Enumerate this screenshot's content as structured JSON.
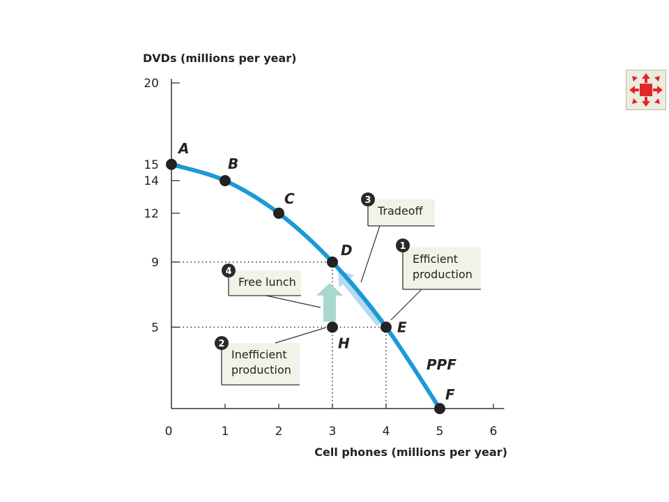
{
  "chart_data": {
    "type": "line",
    "title": "",
    "ylabel": "DVDs (millions per year)",
    "xlabel": "Cell phones (millions per year)",
    "xlim": [
      0,
      6.2
    ],
    "ylim": [
      0,
      20
    ],
    "x_ticks": [
      "0",
      "1",
      "2",
      "3",
      "4",
      "5",
      "6"
    ],
    "y_ticks": [
      "20",
      "15",
      "14",
      "12",
      "9",
      "5"
    ],
    "y_tick_values": [
      20,
      15,
      14,
      12,
      9,
      5
    ],
    "series": [
      {
        "name": "PPF",
        "points": [
          {
            "label": "A",
            "x": 0,
            "y": 15
          },
          {
            "label": "B",
            "x": 1,
            "y": 14
          },
          {
            "label": "C",
            "x": 2,
            "y": 12
          },
          {
            "label": "D",
            "x": 3,
            "y": 9
          },
          {
            "label": "E",
            "x": 4,
            "y": 5
          },
          {
            "label": "F",
            "x": 5,
            "y": 0
          }
        ]
      }
    ],
    "extra_points": [
      {
        "label": "H",
        "x": 3,
        "y": 5
      }
    ],
    "curve_label": "PPF",
    "annotations": [
      {
        "number": "1",
        "text": "Efficient\nproduction"
      },
      {
        "number": "2",
        "text": "Inefficient\nproduction"
      },
      {
        "number": "3",
        "text": "Tradeoff"
      },
      {
        "number": "4",
        "text": "Free lunch"
      }
    ],
    "colors": {
      "curve": "#1a9ad6",
      "arrow_green": "#a9d8cf",
      "arrow_blue": "#b8d9ef",
      "box_fill": "#f2f2e8",
      "badge": "#2a2a2a"
    },
    "grid": false
  },
  "nav_button": {
    "icon": "shrink-arrows-icon",
    "color": "#e3262b"
  }
}
